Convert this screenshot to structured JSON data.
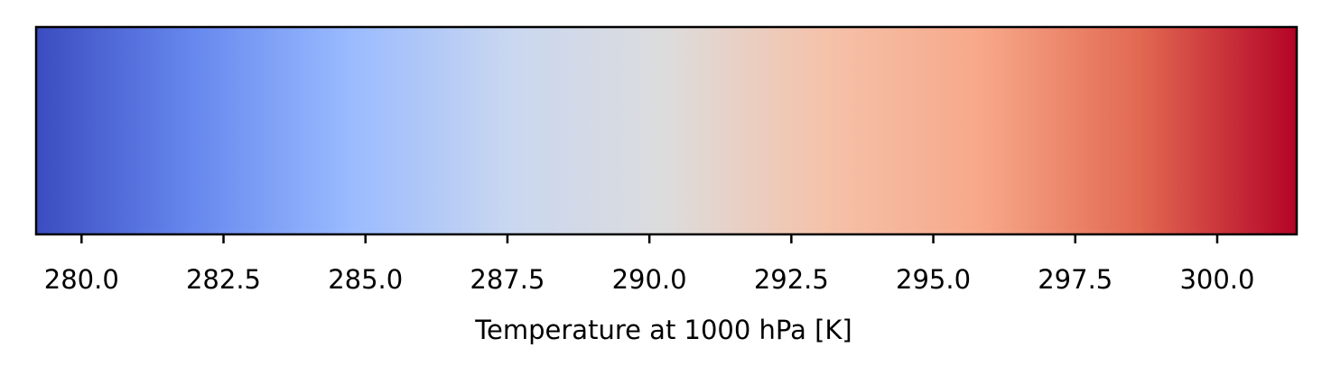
{
  "chart_data": {
    "type": "colorbar",
    "orientation": "horizontal",
    "colormap": "coolwarm",
    "xlabel": "Temperature at 1000 hPa [K]",
    "xlim": [
      279.2,
      301.4
    ],
    "ticks": [
      280.0,
      282.5,
      285.0,
      287.5,
      290.0,
      292.5,
      295.0,
      297.5,
      300.0
    ],
    "tick_labels": [
      "280.0",
      "282.5",
      "285.0",
      "287.5",
      "290.0",
      "292.5",
      "295.0",
      "297.5",
      "300.0"
    ],
    "colorstops": [
      "#3b4cc0",
      "#6788ee",
      "#9abbff",
      "#c9d7f0",
      "#dddcdc",
      "#f5c2aa",
      "#f7a889",
      "#e26952",
      "#b40426"
    ]
  }
}
